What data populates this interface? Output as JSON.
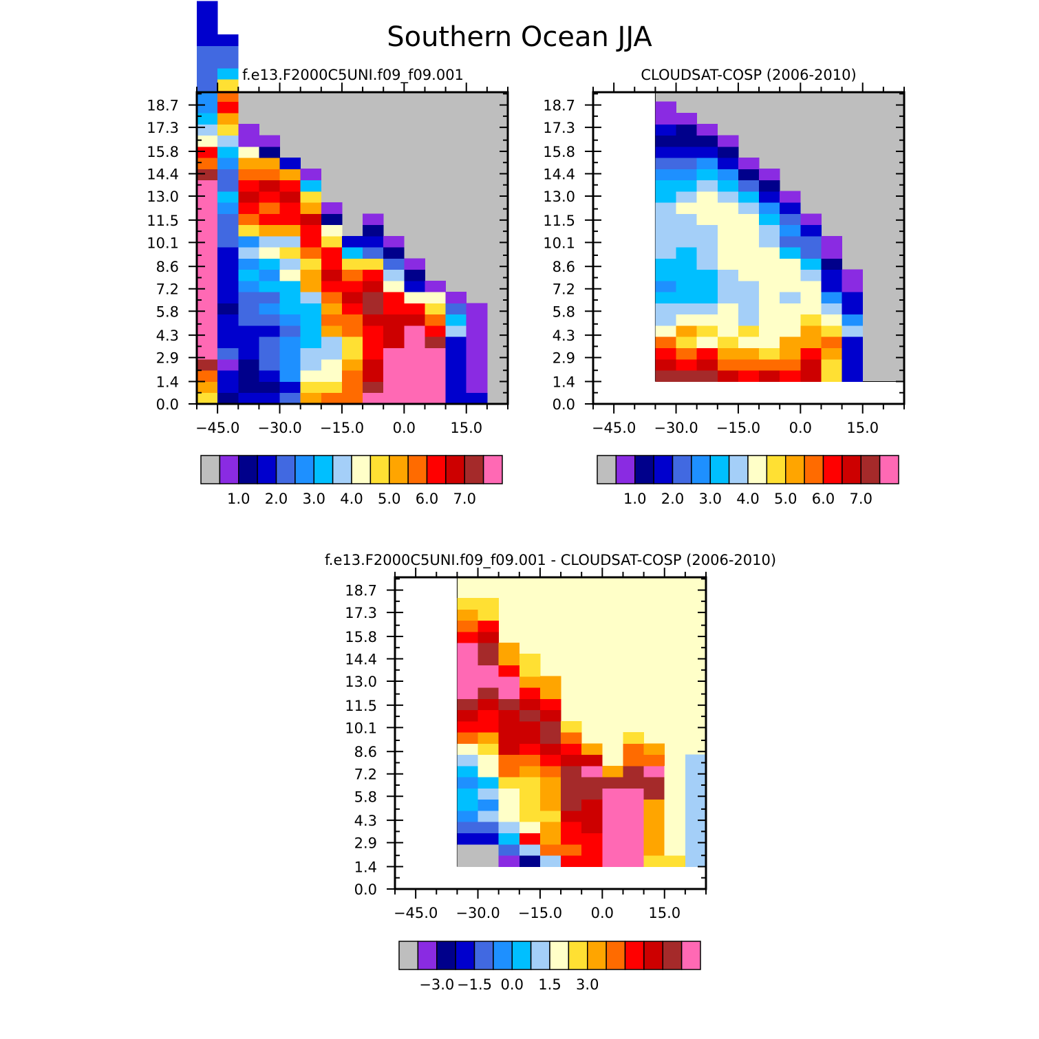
{
  "figure_title": "Southern Ocean JJA",
  "colors": {
    "missing": "#bebebe",
    "palette": [
      "#bebebe",
      "#8a2be2",
      "#00008b",
      "#0000cd",
      "#4169e1",
      "#1e90ff",
      "#00bfff",
      "#a4cff8",
      "#ffffc8",
      "#ffe033",
      "#ffa500",
      "#ff6b00",
      "#ff0000",
      "#cd0000",
      "#a52a2a",
      "#ff69b4"
    ],
    "diff_background": "#ffffc8"
  },
  "chart_data": [
    {
      "type": "heatmap",
      "title": "f.e13.F2000C5UNI.f09_f09.001",
      "xlabel": "",
      "ylabel": "",
      "xticks": [
        "-45.0",
        "-30.0",
        "-15.0",
        "0.0",
        "15.0"
      ],
      "yticks": [
        "0.0",
        "1.4",
        "2.9",
        "4.3",
        "5.8",
        "7.2",
        "8.6",
        "10.1",
        "11.5",
        "13.0",
        "14.4",
        "15.8",
        "17.3",
        "18.7"
      ],
      "xlim": [
        -50,
        25
      ],
      "ylim": [
        0,
        19.5
      ],
      "colorbar_labels": [
        "1.0",
        "2.0",
        "3.0",
        "4.0",
        "5.0",
        "6.0",
        "7.0"
      ],
      "colorbar_levels": [
        0.5,
        1.0,
        1.5,
        2.0,
        2.5,
        3.0,
        3.5,
        4.0,
        4.5,
        5.0,
        5.5,
        6.0,
        6.5,
        7.0
      ],
      "note_values": "color class index per cell (0 = missing/gray, 1..15 = palette classes); columns of 5 deg width from -50, rows of 0.7 km from 0 (bottom to top)",
      "x_start": -50,
      "x_step": 5,
      "y_start": 0,
      "y_step": 0.7,
      "columns": [
        [
          9,
          10,
          11,
          14,
          15,
          15,
          15,
          15,
          15,
          15,
          15,
          15,
          15,
          15,
          15,
          15,
          15,
          15,
          15,
          15,
          14,
          11,
          12,
          8,
          7,
          6,
          5,
          5,
          4,
          4,
          4,
          4,
          3,
          3,
          3,
          3
        ],
        [
          2,
          3,
          3,
          1,
          4,
          3,
          3,
          3,
          2,
          3,
          3,
          3,
          3,
          3,
          4,
          4,
          4,
          5,
          6,
          4,
          4,
          5,
          6,
          7,
          9,
          10,
          12,
          11,
          9,
          6,
          4,
          4,
          3
        ],
        [
          3,
          2,
          2,
          2,
          3,
          3,
          3,
          4,
          4,
          4,
          5,
          6,
          5,
          7,
          5,
          9,
          11,
          12,
          13,
          12,
          11,
          10,
          8,
          1,
          1
        ],
        [
          3,
          2,
          3,
          4,
          4,
          4,
          3,
          4,
          5,
          4,
          6,
          5,
          6,
          8,
          7,
          10,
          12,
          11,
          12,
          13,
          11,
          10,
          2,
          1
        ],
        [
          4,
          3,
          5,
          5,
          5,
          5,
          4,
          5,
          6,
          6,
          6,
          8,
          7,
          9,
          7,
          10,
          12,
          12,
          13,
          12,
          10,
          3
        ],
        [
          10,
          9,
          8,
          7,
          7,
          6,
          6,
          6,
          6,
          7,
          10,
          10,
          9,
          11,
          12,
          12,
          13,
          10,
          9,
          6,
          1
        ],
        [
          11,
          9,
          8,
          8,
          7,
          7,
          10,
          11,
          10,
          11,
          12,
          13,
          12,
          12,
          9,
          8,
          2,
          1
        ],
        [
          11,
          11,
          11,
          10,
          9,
          9,
          11,
          11,
          12,
          13,
          12,
          11,
          9,
          6,
          3
        ],
        [
          15,
          14,
          13,
          13,
          12,
          12,
          12,
          13,
          14,
          14,
          13,
          12,
          9,
          4,
          3,
          2,
          1
        ],
        [
          15,
          15,
          15,
          15,
          15,
          13,
          13,
          13,
          12,
          12,
          8,
          7,
          4,
          2,
          1
        ],
        [
          15,
          15,
          15,
          15,
          15,
          15,
          15,
          13,
          12,
          8,
          3,
          2,
          1
        ],
        [
          15,
          15,
          15,
          15,
          15,
          14,
          12,
          11,
          9,
          8,
          1
        ],
        [
          3,
          3,
          3,
          3,
          3,
          3,
          7,
          6,
          4,
          1
        ],
        [
          3,
          1,
          1,
          1,
          1,
          1,
          1,
          1,
          1
        ],
        [],
        []
      ]
    },
    {
      "type": "heatmap",
      "title": "CLOUDSAT-COSP (2006-2010)",
      "xlabel": "",
      "ylabel": "",
      "xticks": [
        "-45.0",
        "-30.0",
        "-15.0",
        "0.0",
        "15.0"
      ],
      "yticks": [
        "0.0",
        "1.4",
        "2.9",
        "4.3",
        "5.8",
        "7.2",
        "8.6",
        "10.1",
        "11.5",
        "13.0",
        "14.4",
        "15.8",
        "17.3",
        "18.7"
      ],
      "xlim": [
        -50,
        25
      ],
      "ylim": [
        0,
        19.5
      ],
      "colorbar_labels": [
        "1.0",
        "2.0",
        "3.0",
        "4.0",
        "5.0",
        "6.0",
        "7.0"
      ],
      "colorbar_levels": [
        0.5,
        1.0,
        1.5,
        2.0,
        2.5,
        3.0,
        3.5,
        4.0,
        4.5,
        5.0,
        5.5,
        6.0,
        6.5,
        7.0
      ],
      "x_start": -50,
      "x_step": 5,
      "y_start": 0,
      "y_step": 0.7,
      "data_floor_row": 2,
      "columns": [
        [],
        [],
        [],
        [
          0,
          0,
          14,
          13,
          12,
          11,
          8,
          7,
          7,
          6,
          5,
          6,
          6,
          7,
          7,
          7,
          7,
          7,
          6,
          6,
          5,
          4,
          3,
          2,
          3,
          1,
          1
        ],
        [
          0,
          0,
          14,
          12,
          11,
          9,
          10,
          8,
          7,
          6,
          6,
          6,
          6,
          6,
          7,
          7,
          7,
          8,
          7,
          6,
          5,
          4,
          3,
          2,
          2,
          1
        ],
        [
          0,
          0,
          14,
          13,
          12,
          8,
          9,
          8,
          7,
          6,
          6,
          6,
          7,
          7,
          7,
          7,
          8,
          8,
          8,
          7,
          6,
          5,
          3,
          2,
          1
        ],
        [
          0,
          0,
          13,
          11,
          10,
          9,
          8,
          8,
          8,
          7,
          7,
          7,
          8,
          8,
          8,
          8,
          8,
          8,
          7,
          6,
          5,
          3,
          2,
          1
        ],
        [
          0,
          0,
          12,
          11,
          10,
          8,
          9,
          7,
          7,
          7,
          7,
          8,
          8,
          8,
          8,
          8,
          8,
          7,
          6,
          4,
          2,
          1
        ],
        [
          0,
          0,
          13,
          11,
          9,
          8,
          8,
          8,
          8,
          8,
          8,
          8,
          8,
          8,
          7,
          7,
          6,
          5,
          3,
          2,
          1
        ],
        [
          0,
          0,
          12,
          11,
          10,
          10,
          8,
          8,
          8,
          7,
          8,
          8,
          8,
          6,
          4,
          5,
          4,
          3,
          1
        ],
        [
          0,
          0,
          13,
          13,
          12,
          10,
          10,
          9,
          8,
          8,
          8,
          7,
          6,
          4,
          4,
          3,
          1
        ],
        [
          0,
          0,
          9,
          9,
          10,
          11,
          9,
          8,
          7,
          5,
          3,
          3,
          2,
          1,
          1
        ],
        [
          0,
          0,
          3,
          3,
          3,
          3,
          7,
          5,
          3,
          3,
          1,
          1
        ],
        [],
        []
      ]
    },
    {
      "type": "heatmap",
      "title": "f.e13.F2000C5UNI.f09_f09.001 - CLOUDSAT-COSP (2006-2010)",
      "xlabel": "",
      "ylabel": "",
      "xticks": [
        "-45.0",
        "-30.0",
        "-15.0",
        "0.0",
        "15.0"
      ],
      "yticks": [
        "0.0",
        "1.4",
        "2.9",
        "4.3",
        "5.8",
        "7.2",
        "8.6",
        "10.1",
        "11.5",
        "13.0",
        "14.4",
        "15.8",
        "17.3",
        "18.7"
      ],
      "xlim": [
        -50,
        25
      ],
      "ylim": [
        0,
        19.5
      ],
      "colorbar_labels": [
        "-3.0",
        "-1.5",
        "0.0",
        "1.5",
        "3.0"
      ],
      "colorbar_levels": [
        -3.5,
        -3.0,
        -2.5,
        -2.0,
        -1.5,
        -1.0,
        -0.5,
        0.0,
        0.5,
        1.0,
        1.5,
        2.0,
        2.5,
        3.0,
        3.5
      ],
      "x_start": -50,
      "x_step": 5,
      "y_start": 0,
      "y_step": 0.7,
      "data_floor_row": 2,
      "columns": [
        [],
        [],
        [],
        [
          0,
          0,
          0,
          0,
          3,
          4,
          5,
          6,
          6,
          5,
          6,
          7,
          8,
          11,
          12,
          13,
          14,
          15,
          15,
          15,
          15,
          15,
          12,
          11,
          10,
          9
        ],
        [
          0,
          0,
          0,
          0,
          3,
          4,
          7,
          5,
          7,
          6,
          8,
          8,
          9,
          10,
          12,
          12,
          13,
          14,
          15,
          15,
          14,
          14,
          13,
          12,
          9,
          9
        ],
        [
          0,
          0,
          1,
          4,
          6,
          7,
          8,
          8,
          8,
          9,
          11,
          11,
          13,
          13,
          13,
          13,
          14,
          15,
          15,
          12,
          10,
          10
        ],
        [
          0,
          0,
          2,
          7,
          12,
          8,
          9,
          9,
          9,
          9,
          10,
          11,
          12,
          13,
          13,
          14,
          13,
          12,
          10,
          9,
          9
        ],
        [
          0,
          0,
          7,
          11,
          10,
          10,
          9,
          10,
          10,
          10,
          11,
          12,
          13,
          14,
          14,
          13,
          12,
          10,
          10
        ],
        [
          0,
          0,
          12,
          11,
          12,
          12,
          13,
          14,
          14,
          14,
          14,
          13,
          12,
          11,
          9
        ],
        [
          0,
          0,
          12,
          12,
          12,
          13,
          13,
          13,
          14,
          14,
          15,
          13,
          10
        ],
        [
          0,
          0,
          15,
          15,
          15,
          15,
          15,
          15,
          15,
          14,
          10
        ],
        [
          0,
          0,
          15,
          15,
          15,
          15,
          15,
          15,
          15,
          14,
          14,
          11,
          11,
          9
        ],
        [
          0,
          0,
          9,
          10,
          10,
          10,
          10,
          10,
          14,
          14,
          15,
          11,
          10
        ],
        [
          0,
          0,
          9,
          8,
          8,
          8,
          8,
          8,
          8,
          8,
          8
        ],
        [
          0,
          0,
          7,
          7,
          7,
          7,
          7,
          7,
          7,
          7,
          7,
          7
        ]
      ]
    }
  ]
}
